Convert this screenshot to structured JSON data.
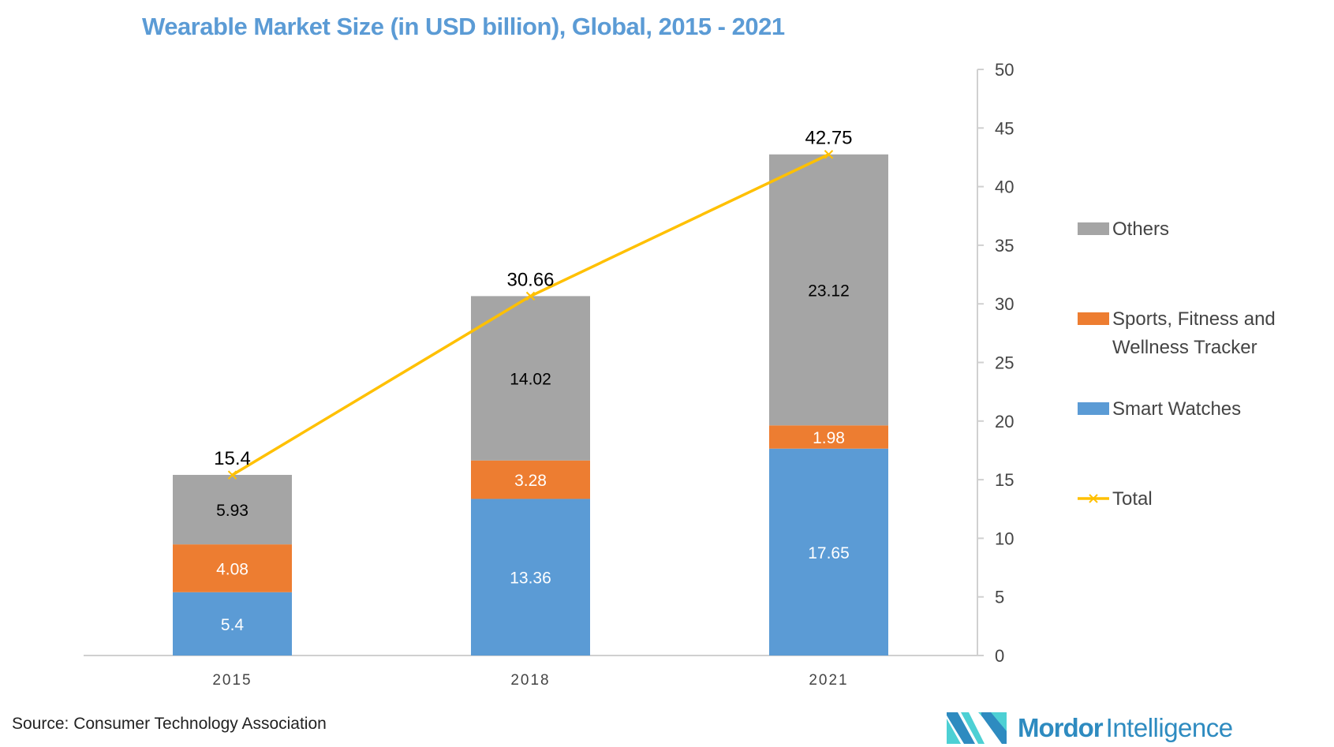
{
  "chart_data": {
    "type": "bar",
    "stacked": true,
    "title": "Wearable Market Size (in USD billion), Global, 2015 - 2021",
    "categories": [
      "2015",
      "2018",
      "2021"
    ],
    "series": [
      {
        "name": "Smart Watches",
        "values": [
          5.4,
          13.36,
          17.65
        ],
        "color": "#5b9bd5",
        "label_color": "#ffffff"
      },
      {
        "name": "Sports, Fitness and Wellness Tracker",
        "values": [
          4.08,
          3.28,
          1.98
        ],
        "color": "#ed7d31",
        "label_color": "#ffffff"
      },
      {
        "name": "Others",
        "values": [
          5.93,
          14.02,
          23.12
        ],
        "color": "#a5a5a5",
        "label_color": "#000000"
      }
    ],
    "line_series": {
      "name": "Total",
      "values": [
        15.4,
        30.66,
        42.75
      ],
      "labels": [
        "15.4",
        "30.66",
        "42.75"
      ],
      "color": "#ffc000",
      "marker": "x"
    },
    "ylim": [
      0,
      50
    ],
    "yticks": [
      0,
      5,
      10,
      15,
      20,
      25,
      30,
      35,
      40,
      45,
      50
    ],
    "y_axis_side": "right",
    "grid": false,
    "legend_position": "right",
    "legend_order": [
      "Others",
      "Sports, Fitness and Wellness Tracker",
      "Smart Watches",
      "Total"
    ]
  },
  "source": "Source: Consumer Technology Association",
  "logo": {
    "brand": "Mordor",
    "suffix": "Intelligence",
    "colors": [
      "#2e8bc0",
      "#4dd0d4"
    ]
  }
}
